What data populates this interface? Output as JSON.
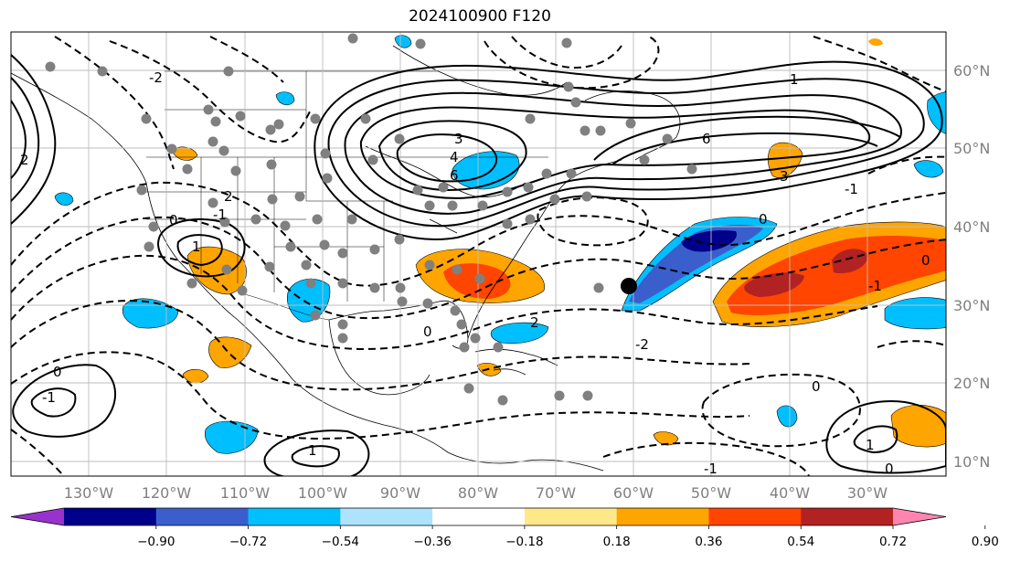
{
  "title": "2024100900 F120",
  "lon_ticks": [
    "130°W",
    "120°W",
    "110°W",
    "100°W",
    "90°W",
    "80°W",
    "70°W",
    "60°W",
    "50°W",
    "40°W",
    "30°W"
  ],
  "lat_ticks": [
    "60°N",
    "50°N",
    "40°N",
    "30°N",
    "20°N",
    "10°N"
  ],
  "colorbar": {
    "labels": [
      "−0.90",
      "−0.72",
      "−0.54",
      "−0.36",
      "−0.18",
      "0.18",
      "0.36",
      "0.54",
      "0.72",
      "0.90"
    ],
    "colors": [
      "#9932cc",
      "#00008b",
      "#3a5fcd",
      "#00bfff",
      "#aee3ff",
      "#ffffff",
      "#ffe88a",
      "#ffa500",
      "#ff4500",
      "#b22222",
      "#ff85b0"
    ],
    "extend": "both"
  },
  "contour_labels": [
    "0",
    "1",
    "2",
    "3",
    "4",
    "6",
    "-1",
    "-2",
    "3",
    "6",
    "0",
    "1",
    "2",
    "0",
    "-1",
    "0",
    "0",
    "-2",
    "1",
    "-1",
    "0",
    "2",
    "1",
    "0",
    "-1",
    "-1"
  ]
}
